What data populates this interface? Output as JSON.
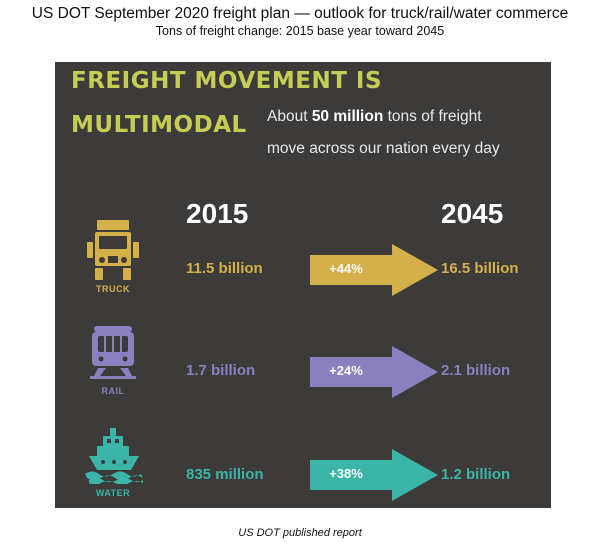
{
  "heading": {
    "line1": "US DOT September 2020 freight plan — outlook for truck/rail/water commerce",
    "line2": "Tons of freight change: 2015 base year toward 2045"
  },
  "infographic": {
    "title_line1": "FREIGHT MOVEMENT IS",
    "title_line2": "MULTIMODAL",
    "subtitle_pre": "About ",
    "subtitle_bold": "50 million",
    "subtitle_post": " tons of freight",
    "subtitle_line2": "move across our nation every day"
  },
  "caption": "US DOT published report",
  "colors": {
    "truck": "#d4b04a",
    "rail": "#8b80c0",
    "water": "#3ab5a8",
    "title": "#c6cd55",
    "panel": "#3c3b3a"
  },
  "chart_data": {
    "type": "table",
    "columns": [
      "2015",
      "2045"
    ],
    "unit": "tons of freight",
    "rows": [
      {
        "mode": "TRUCK",
        "icon": "truck-icon",
        "value_2015": "11.5 billion",
        "value_2045": "16.5 billion",
        "change": "+44%",
        "v2015": 11.5,
        "v2045": 16.5,
        "change_pct": 44,
        "color": "#d4b04a"
      },
      {
        "mode": "RAIL",
        "icon": "train-icon",
        "value_2015": "1.7 billion",
        "value_2045": "2.1 billion",
        "change": "+24%",
        "v2015": 1.7,
        "v2045": 2.1,
        "change_pct": 24,
        "color": "#8b80c0"
      },
      {
        "mode": "WATER",
        "icon": "ship-icon",
        "value_2015": "835 million",
        "value_2045": "1.2 billion",
        "change": "+38%",
        "v2015": 0.835,
        "v2045": 1.2,
        "change_pct": 38,
        "color": "#3ab5a8"
      }
    ]
  }
}
